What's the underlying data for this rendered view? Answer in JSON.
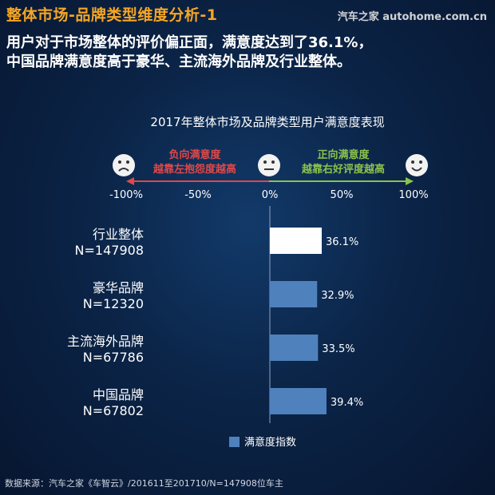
{
  "header": {
    "title": "整体市场-品牌类型维度分析-1",
    "brand": "汽车之家 autohome.com.cn",
    "headline_lines": [
      "用户对于市场整体的评价偏正面，满意度达到了36.1%，",
      "中国品牌满意度高于豪华、主流海外品牌及行业整体。"
    ]
  },
  "scale": {
    "negative_label_lines": [
      "负向满意度",
      "越靠左抱怨度越高"
    ],
    "positive_label_lines": [
      "正向满意度",
      "越靠右好评度越高"
    ],
    "negative_color": "#e04848",
    "positive_color": "#8bc34a",
    "icons": [
      "sad-face-icon",
      "neutral-face-icon",
      "happy-face-icon"
    ]
  },
  "chart_data": {
    "type": "bar",
    "orientation": "horizontal",
    "title": "2017年整体市场及品牌类型用户满意度表现",
    "xlim": [
      -100,
      100
    ],
    "x_ticks": [
      "-100%",
      "-50%",
      "0%",
      "50%",
      "100%"
    ],
    "categories": [
      [
        "行业整体",
        "N=147908"
      ],
      [
        "豪华品牌",
        "N=12320"
      ],
      [
        "主流海外品牌",
        "N=67786"
      ],
      [
        "中国品牌",
        "N=67802"
      ]
    ],
    "series": [
      {
        "name": "满意度指数",
        "values": [
          36.1,
          32.9,
          33.5,
          39.4
        ],
        "labels": [
          "36.1%",
          "32.9%",
          "33.5%",
          "39.4%"
        ],
        "colors": [
          "#ffffff",
          "#4f81bd",
          "#4f81bd",
          "#4f81bd"
        ]
      }
    ],
    "legend_position": "bottom-center"
  },
  "footer": {
    "source": "数据来源：汽车之家《车智云》/201611至201710/N=147908位车主"
  }
}
